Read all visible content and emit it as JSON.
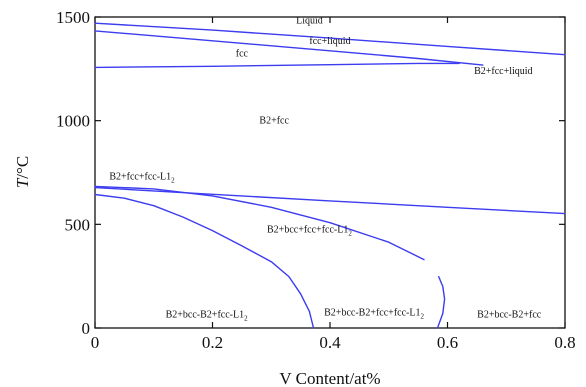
{
  "chart_data": {
    "type": "line",
    "title": "",
    "xlabel": "V Content/at%",
    "ylabel_italic": "T",
    "ylabel_unit": "/°C",
    "xlim": [
      0,
      0.8
    ],
    "ylim": [
      0,
      1500
    ],
    "xticks": [
      0,
      0.2,
      0.4,
      0.6,
      0.8
    ],
    "xtick_labels": [
      "0",
      "0.2",
      "0.4",
      "0.6",
      "0.8"
    ],
    "yticks": [
      0,
      500,
      1000,
      1500
    ],
    "ytick_labels": [
      "0",
      "500",
      "1000",
      "1500"
    ],
    "grid": false,
    "line_color": "#3c3cf0",
    "series": [
      {
        "id": "liquidus",
        "points": [
          [
            0,
            1470
          ],
          [
            0.2,
            1437
          ],
          [
            0.4,
            1398
          ],
          [
            0.6,
            1358
          ],
          [
            0.8,
            1318
          ]
        ]
      },
      {
        "id": "fcc-liquid-boundary",
        "points": [
          [
            0,
            1433
          ],
          [
            0.2,
            1385
          ],
          [
            0.4,
            1337
          ],
          [
            0.55,
            1300
          ],
          [
            0.66,
            1268
          ]
        ]
      },
      {
        "id": "fcc-upper-boundary",
        "points": [
          [
            0,
            1257
          ],
          [
            0.2,
            1262
          ],
          [
            0.4,
            1270
          ],
          [
            0.55,
            1276
          ],
          [
            0.62,
            1276
          ]
        ]
      },
      {
        "id": "upper-solvus",
        "points": [
          [
            0,
            677
          ],
          [
            0.2,
            645
          ],
          [
            0.4,
            613
          ],
          [
            0.6,
            582
          ],
          [
            0.8,
            552
          ]
        ]
      },
      {
        "id": "l12-solvus-upper",
        "points": [
          [
            0,
            683
          ],
          [
            0.1,
            671
          ],
          [
            0.2,
            637
          ],
          [
            0.3,
            582
          ],
          [
            0.4,
            508
          ],
          [
            0.5,
            414
          ],
          [
            0.56,
            330
          ]
        ]
      },
      {
        "id": "l12-solvus-lower",
        "points": [
          [
            0,
            644
          ],
          [
            0.05,
            626
          ],
          [
            0.1,
            590
          ],
          [
            0.15,
            535
          ],
          [
            0.2,
            470
          ],
          [
            0.25,
            396
          ],
          [
            0.3,
            320
          ],
          [
            0.33,
            248
          ],
          [
            0.35,
            165
          ],
          [
            0.365,
            80
          ],
          [
            0.372,
            0
          ]
        ]
      },
      {
        "id": "bcc-boundary",
        "points": [
          [
            0.585,
            248
          ],
          [
            0.592,
            200
          ],
          [
            0.595,
            140
          ],
          [
            0.592,
            70
          ],
          [
            0.583,
            0
          ]
        ]
      }
    ],
    "region_labels": [
      {
        "text": "Liquid",
        "x": 0.365,
        "y": 1483
      },
      {
        "text": "fcc+liquid",
        "x": 0.4,
        "y": 1385
      },
      {
        "text": "fcc",
        "x": 0.25,
        "y": 1325
      },
      {
        "text": "B2+fcc+liquid",
        "x": 0.695,
        "y": 1240
      },
      {
        "text": "B2+fcc",
        "x": 0.305,
        "y": 1000
      },
      {
        "text": "B2+fcc+fcc-L1",
        "sub": "2",
        "x": 0.08,
        "y": 730
      },
      {
        "text": "B2+bcc+fcc+fcc-L1",
        "sub": "2",
        "x": 0.365,
        "y": 475
      },
      {
        "text": "B2+bcc-B2+fcc-L1",
        "sub": "2",
        "x": 0.19,
        "y": 65
      },
      {
        "text": "B2+bcc-B2+fcc+fcc-L1",
        "sub": "2",
        "x": 0.475,
        "y": 75
      },
      {
        "text": "B2+bcc-B2+fcc",
        "x": 0.705,
        "y": 65
      }
    ]
  }
}
